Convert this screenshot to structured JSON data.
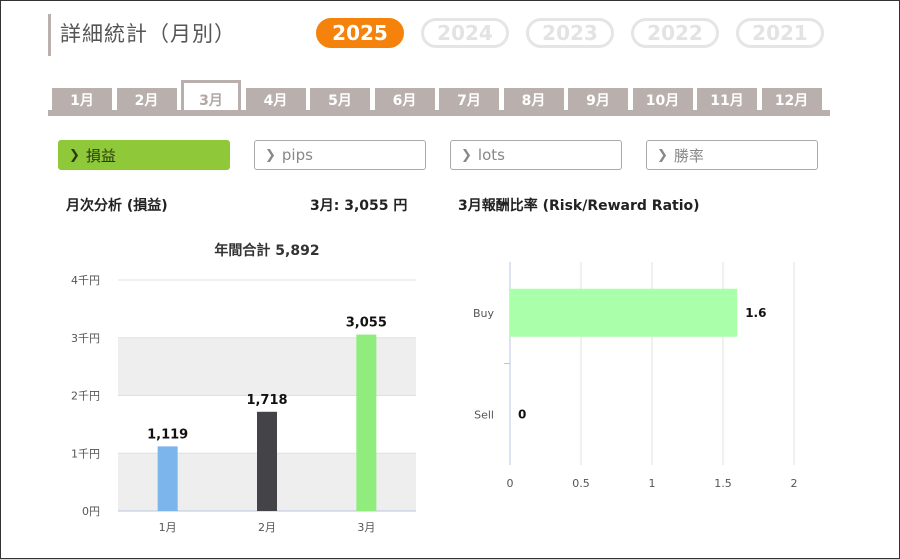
{
  "header": {
    "title": "詳細統計（月別）"
  },
  "years": [
    {
      "label": "2025",
      "active": true
    },
    {
      "label": "2024",
      "active": false
    },
    {
      "label": "2023",
      "active": false
    },
    {
      "label": "2022",
      "active": false
    },
    {
      "label": "2021",
      "active": false
    }
  ],
  "months": [
    "1月",
    "2月",
    "3月",
    "4月",
    "5月",
    "6月",
    "7月",
    "8月",
    "9月",
    "10月",
    "11月",
    "12月"
  ],
  "active_month_index": 2,
  "metrics": [
    {
      "label": "損益",
      "active": true
    },
    {
      "label": "pips",
      "active": false
    },
    {
      "label": "lots",
      "active": false
    },
    {
      "label": "勝率",
      "active": false
    }
  ],
  "monthly_section": {
    "title": "月次分析 (損益)",
    "summary": "3月:  3,055 円"
  },
  "ratio_section": {
    "title": "3月報酬比率 (Risk/Reward Ratio)"
  },
  "colors": {
    "accent": "#f5820a",
    "active_metric": "#8fc93a",
    "tab": "#b9b0ad"
  },
  "chart_data": [
    {
      "type": "bar",
      "title": "年間合計 5,892",
      "categories": [
        "1月",
        "2月",
        "3月"
      ],
      "values": [
        1119,
        1718,
        3055
      ],
      "value_labels": [
        "1,119",
        "1,718",
        "3,055"
      ],
      "bar_colors": [
        "#7cb5ec",
        "#434348",
        "#90ed7d"
      ],
      "ylim": [
        0,
        4000
      ],
      "yticks": [
        {
          "v": 0,
          "label": "0円"
        },
        {
          "v": 1000,
          "label": "1千円"
        },
        {
          "v": 2000,
          "label": "2千円"
        },
        {
          "v": 3000,
          "label": "3千円"
        },
        {
          "v": 4000,
          "label": "4千円"
        }
      ],
      "xlabel": "",
      "ylabel": "",
      "grid": "alternating bands"
    },
    {
      "type": "bar",
      "orientation": "horizontal",
      "categories": [
        "Buy",
        "Sell"
      ],
      "values": [
        1.6,
        0
      ],
      "value_labels": [
        "1.6",
        "0"
      ],
      "bar_colors": [
        "#aaffaa",
        "#aaffaa"
      ],
      "xlim": [
        0,
        2
      ],
      "xticks": [
        {
          "v": 0,
          "label": "0"
        },
        {
          "v": 0.5,
          "label": "0.5"
        },
        {
          "v": 1,
          "label": "1"
        },
        {
          "v": 1.5,
          "label": "1.5"
        },
        {
          "v": 2,
          "label": "2"
        }
      ],
      "grid": "vertical lines"
    }
  ]
}
